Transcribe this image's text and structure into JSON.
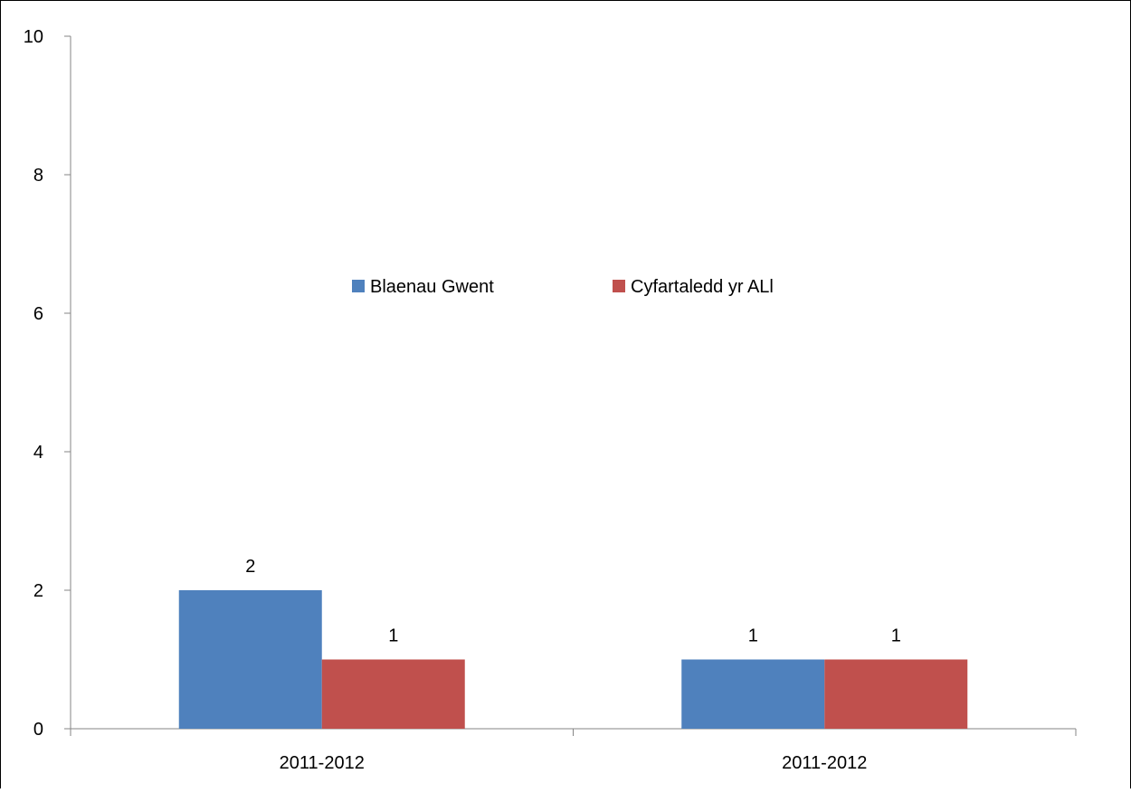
{
  "chart_data": {
    "type": "bar",
    "categories": [
      "2011-2012",
      "2011-2012"
    ],
    "series": [
      {
        "name": "Blaenau Gwent",
        "values": [
          2,
          1
        ],
        "color": "#4f81bd"
      },
      {
        "name": "Cyfartaledd yr ALl",
        "values": [
          1,
          1
        ],
        "color": "#c0504d"
      }
    ],
    "title": "",
    "xlabel": "",
    "ylabel": "",
    "ylim": [
      0,
      10
    ],
    "yticks": [
      0,
      2,
      4,
      6,
      8,
      10
    ],
    "data_labels": true,
    "grid": false,
    "legend_position": "inside-center"
  }
}
